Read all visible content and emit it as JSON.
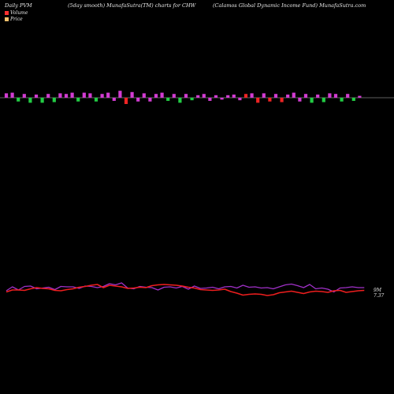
{
  "header": {
    "left": "Daily PVM",
    "middle": "(5day smooth) MunafaSutra(TM) charts for CHW",
    "right": "(Calamos Global Dynamic Income   Fund) MunafaSutra.com"
  },
  "legend": {
    "volume_label": "Volume",
    "price_label": "Price",
    "volume_color": "#ff3030",
    "price_color": "#f5c16c"
  },
  "colors": {
    "background": "#000000",
    "bar_magenta": "#d23cd2",
    "bar_red": "#ee2424",
    "bar_green": "#22cc44",
    "line_purple": "#a030c8",
    "line_red": "#ee1e1e",
    "baseline": "#bbbbbb"
  },
  "chart_data": [
    {
      "type": "bar",
      "title": "",
      "x": [
        1,
        2,
        3,
        4,
        5,
        6,
        7,
        8,
        9,
        10,
        11,
        12,
        13,
        14,
        15,
        16,
        17,
        18,
        19,
        20,
        21,
        22,
        23,
        24,
        25,
        26,
        27,
        28,
        29,
        30,
        31,
        32,
        33,
        34,
        35,
        36,
        37,
        38,
        39,
        40,
        41,
        42,
        43,
        44,
        45,
        46,
        47,
        48,
        49,
        50,
        51,
        52,
        53,
        54,
        55,
        56,
        57,
        58,
        59,
        60
      ],
      "values": [
        7,
        8,
        -6,
        6,
        -8,
        5,
        -8,
        6,
        -7,
        7,
        6,
        8,
        -6,
        8,
        7,
        -6,
        6,
        8,
        -5,
        11,
        -10,
        9,
        -6,
        7,
        -6,
        6,
        8,
        -5,
        6,
        -8,
        6,
        -4,
        4,
        6,
        -5,
        4,
        -3,
        4,
        5,
        -4,
        6,
        7,
        -8,
        7,
        -6,
        6,
        -7,
        5,
        8,
        -6,
        6,
        -8,
        5,
        -7,
        7,
        6,
        -6,
        6,
        -5,
        3
      ],
      "colors": [
        "magenta",
        "magenta",
        "green",
        "magenta",
        "green",
        "magenta",
        "green",
        "magenta",
        "green",
        "magenta",
        "magenta",
        "magenta",
        "green",
        "magenta",
        "magenta",
        "green",
        "magenta",
        "magenta",
        "magenta",
        "magenta",
        "red",
        "magenta",
        "magenta",
        "magenta",
        "magenta",
        "magenta",
        "magenta",
        "green",
        "magenta",
        "green",
        "magenta",
        "green",
        "magenta",
        "magenta",
        "magenta",
        "magenta",
        "magenta",
        "magenta",
        "magenta",
        "magenta",
        "red",
        "magenta",
        "red",
        "magenta",
        "red",
        "magenta",
        "red",
        "magenta",
        "magenta",
        "magenta",
        "magenta",
        "green",
        "magenta",
        "green",
        "magenta",
        "magenta",
        "green",
        "magenta",
        "green",
        "magenta"
      ]
    },
    {
      "type": "line",
      "title": "",
      "x": [
        1,
        2,
        3,
        4,
        5,
        6,
        7,
        8,
        9,
        10,
        11,
        12,
        13,
        14,
        15,
        16,
        17,
        18,
        19,
        20,
        21,
        22,
        23,
        24,
        25,
        26,
        27,
        28,
        29,
        30,
        31,
        32,
        33,
        34,
        35,
        36,
        37,
        38,
        39,
        40,
        41,
        42,
        43,
        44,
        45,
        46,
        47,
        48,
        49,
        50,
        51,
        52,
        53,
        54,
        55,
        56,
        57,
        58,
        59,
        60
      ],
      "series": [
        {
          "color": "#a030c8",
          "end_label": "9M",
          "values": [
            42,
            52,
            44,
            53,
            54,
            47,
            49,
            51,
            45,
            53,
            52,
            52,
            48,
            54,
            53,
            50,
            53,
            60,
            57,
            62,
            49,
            47,
            53,
            51,
            50,
            44,
            51,
            52,
            49,
            53,
            46,
            54,
            48,
            49,
            51,
            47,
            52,
            53,
            49,
            56,
            51,
            52,
            49,
            50,
            47,
            52,
            57,
            59,
            55,
            50,
            58,
            47,
            49,
            46,
            39,
            49,
            50,
            52,
            50,
            50
          ]
        },
        {
          "color": "#ee1e1e",
          "end_label": "7.37",
          "values": [
            39,
            44,
            44,
            43,
            47,
            50,
            48,
            47,
            43,
            42,
            45,
            47,
            51,
            53,
            56,
            58,
            50,
            56,
            54,
            52,
            48,
            49,
            51,
            50,
            55,
            57,
            58,
            57,
            56,
            54,
            51,
            49,
            45,
            44,
            43,
            44,
            46,
            40,
            36,
            31,
            33,
            34,
            33,
            30,
            32,
            37,
            39,
            41,
            38,
            35,
            39,
            41,
            40,
            38,
            42,
            43,
            38,
            40,
            42,
            43
          ]
        }
      ]
    }
  ]
}
